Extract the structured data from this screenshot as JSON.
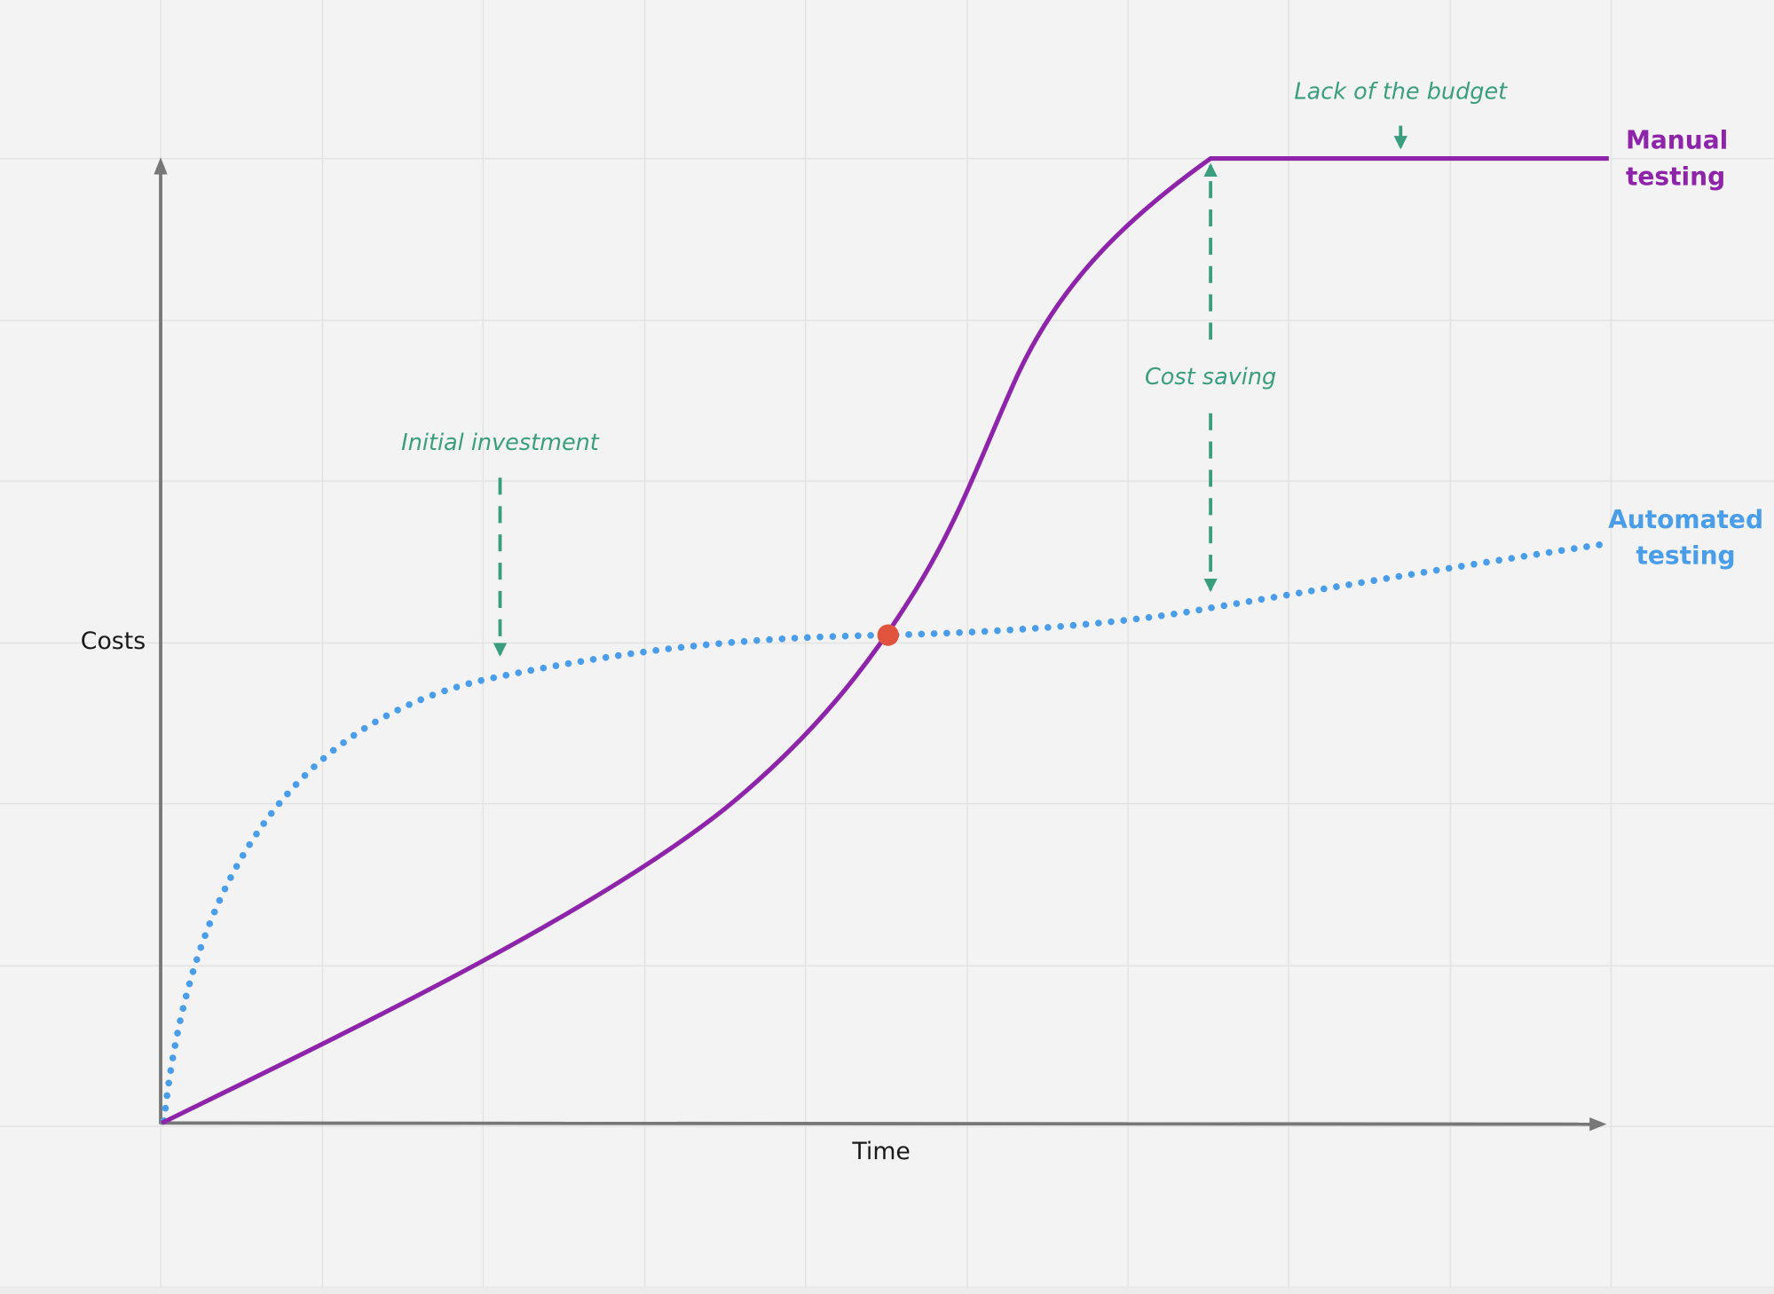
{
  "axes": {
    "y_label": "Costs",
    "x_label": "Time"
  },
  "annotations": {
    "lack_of_budget": "Lack of the budget",
    "initial_investment": "Initial investment",
    "cost_saving": "Cost saving"
  },
  "series_labels": {
    "manual": [
      "Manual",
      "testing"
    ],
    "automated": [
      "Automated",
      "testing"
    ]
  }
}
